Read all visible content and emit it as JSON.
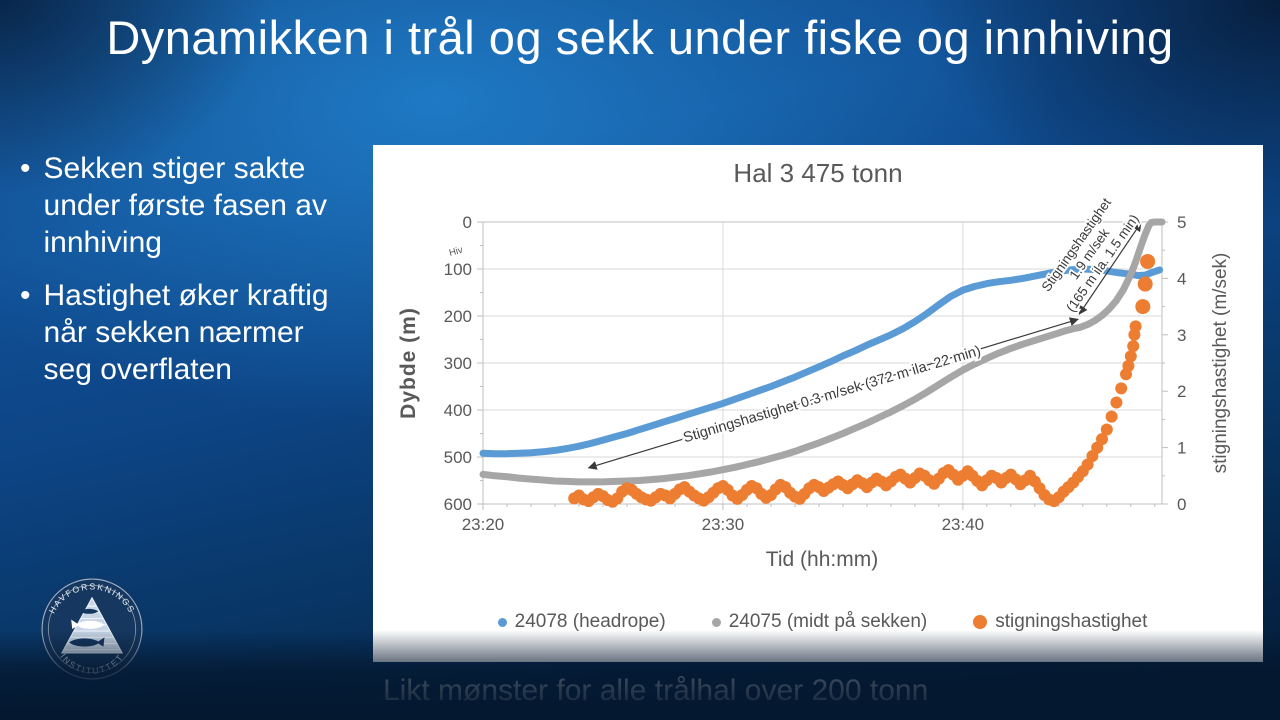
{
  "slide": {
    "title": "Dynamikken i trål og sekk under fiske og innhiving",
    "bullet_char": "•",
    "bullets": [
      "Sekken stiger sakte under første fasen av innhiving",
      "Hastighet øker kraftig når sekken nærmer seg overflaten"
    ],
    "caption": "Likt mønster for alle trålhal over 200 tonn",
    "logo": {
      "top_text": "HAVFORSKNINGS",
      "bottom_text": "INSTITUTTET"
    }
  },
  "colors": {
    "series_blue": "#5B9BD5",
    "series_gray": "#A6A6A6",
    "series_orange": "#ED7D31",
    "chart_text": "#595959",
    "grid": "#D9D9D9",
    "axis": "#BFBFBF",
    "annotation": "#3a3a3a",
    "panel": "#FFFFFF",
    "logo_navy": "#16375f"
  },
  "chart_data": {
    "type": "line",
    "title": "Hal 3 475 tonn",
    "xlabel": "Tid (hh:mm)",
    "ylabel_left": "Dybde (m)",
    "ylabel_right": "stigningshastighet (m/sek)",
    "x_ticks": [
      "23:20",
      "23:30",
      "23:40"
    ],
    "x_tick_minutes": [
      0,
      10,
      20
    ],
    "x_gridline_minutes": [
      10,
      20
    ],
    "x_range_minutes": [
      0,
      28.3
    ],
    "y_left": {
      "min": 0,
      "max": 600,
      "ticks": [
        0,
        100,
        200,
        300,
        400,
        500,
        600
      ],
      "inverted": true
    },
    "y_right": {
      "min": 0,
      "max": 5,
      "ticks": [
        0,
        1,
        2,
        3,
        4,
        5
      ]
    },
    "annotations": {
      "hiv_label": "Hiv",
      "slow_text": "Stigningshastighet 0.3 m/sek (372 m ila. 22 min)",
      "slow_arrow": {
        "t1": 4.4,
        "d1": 523,
        "t2": 24.8,
        "d2": 207
      },
      "fast_text_lines": [
        "Stigningshastighet",
        "1.9 m/sek",
        "(165 m ila. 1.5 min)"
      ],
      "fast_arrow": {
        "t1": 24.85,
        "d1": 196,
        "t2": 27.42,
        "d2": 2
      }
    },
    "series": [
      {
        "name": "24078 (headrope)",
        "axis": "left",
        "color": "#5B9BD5",
        "style": "line",
        "points": [
          [
            0,
            492
          ],
          [
            0.5,
            493
          ],
          [
            1,
            493
          ],
          [
            1.5,
            492
          ],
          [
            2,
            491
          ],
          [
            2.5,
            489
          ],
          [
            3,
            486
          ],
          [
            3.5,
            482
          ],
          [
            4,
            477
          ],
          [
            4.5,
            471
          ],
          [
            5,
            464
          ],
          [
            5.5,
            457
          ],
          [
            6,
            450
          ],
          [
            6.5,
            442
          ],
          [
            7,
            434
          ],
          [
            7.5,
            426
          ],
          [
            8,
            418
          ],
          [
            8.5,
            410
          ],
          [
            9,
            402
          ],
          [
            9.5,
            394
          ],
          [
            10,
            386
          ],
          [
            10.5,
            377
          ],
          [
            11,
            368
          ],
          [
            11.5,
            359
          ],
          [
            12,
            350
          ],
          [
            12.5,
            340
          ],
          [
            13,
            330
          ],
          [
            13.5,
            319
          ],
          [
            14,
            308
          ],
          [
            14.5,
            297
          ],
          [
            15,
            285
          ],
          [
            15.5,
            274
          ],
          [
            16,
            262
          ],
          [
            16.5,
            251
          ],
          [
            17,
            240
          ],
          [
            17.5,
            227
          ],
          [
            18,
            212
          ],
          [
            18.5,
            195
          ],
          [
            19,
            176
          ],
          [
            19.5,
            158
          ],
          [
            20,
            145
          ],
          [
            20.5,
            137
          ],
          [
            21,
            131
          ],
          [
            21.5,
            127
          ],
          [
            22,
            124
          ],
          [
            22.5,
            120
          ],
          [
            23,
            115
          ],
          [
            23.5,
            110
          ],
          [
            24,
            105
          ],
          [
            24.5,
            102
          ],
          [
            25,
            100
          ],
          [
            25.5,
            101
          ],
          [
            26,
            104
          ],
          [
            26.5,
            108
          ],
          [
            27,
            111
          ],
          [
            27.3,
            114
          ],
          [
            27.6,
            113
          ],
          [
            27.9,
            107
          ],
          [
            28.2,
            102
          ]
        ]
      },
      {
        "name": "24075 (midt på sekken)",
        "axis": "left",
        "color": "#A6A6A6",
        "style": "line",
        "points": [
          [
            0,
            537
          ],
          [
            0.5,
            540
          ],
          [
            1,
            542
          ],
          [
            1.5,
            545
          ],
          [
            2,
            547
          ],
          [
            2.5,
            549
          ],
          [
            3,
            551
          ],
          [
            3.5,
            552
          ],
          [
            4,
            553
          ],
          [
            4.5,
            553
          ],
          [
            5,
            553
          ],
          [
            5.5,
            552
          ],
          [
            6,
            551
          ],
          [
            6.5,
            550
          ],
          [
            7,
            548
          ],
          [
            7.5,
            546
          ],
          [
            8,
            543
          ],
          [
            8.5,
            540
          ],
          [
            9,
            536
          ],
          [
            9.5,
            532
          ],
          [
            10,
            527
          ],
          [
            10.5,
            522
          ],
          [
            11,
            516
          ],
          [
            11.5,
            510
          ],
          [
            12,
            503
          ],
          [
            12.5,
            496
          ],
          [
            13,
            488
          ],
          [
            13.5,
            479
          ],
          [
            14,
            470
          ],
          [
            14.5,
            460
          ],
          [
            15,
            450
          ],
          [
            15.5,
            439
          ],
          [
            16,
            428
          ],
          [
            16.5,
            416
          ],
          [
            17,
            404
          ],
          [
            17.5,
            391
          ],
          [
            18,
            377
          ],
          [
            18.5,
            362
          ],
          [
            19,
            346
          ],
          [
            19.5,
            330
          ],
          [
            20,
            315
          ],
          [
            20.5,
            302
          ],
          [
            21,
            290
          ],
          [
            21.5,
            279
          ],
          [
            22,
            269
          ],
          [
            22.5,
            260
          ],
          [
            23,
            252
          ],
          [
            23.5,
            244
          ],
          [
            24,
            236
          ],
          [
            24.3,
            231
          ],
          [
            24.6,
            227
          ],
          [
            24.9,
            224
          ],
          [
            25.2,
            218
          ],
          [
            25.5,
            210
          ],
          [
            25.8,
            199
          ],
          [
            26.1,
            185
          ],
          [
            26.4,
            167
          ],
          [
            26.7,
            143
          ],
          [
            27,
            112
          ],
          [
            27.2,
            85
          ],
          [
            27.4,
            55
          ],
          [
            27.6,
            26
          ],
          [
            27.75,
            8
          ],
          [
            27.85,
            1
          ],
          [
            28,
            0
          ],
          [
            28.3,
            0
          ]
        ]
      },
      {
        "name": "stigningshastighet",
        "axis": "right",
        "color": "#ED7D31",
        "style": "dots",
        "points": [
          [
            3.8,
            0.1
          ],
          [
            4.0,
            0.15
          ],
          [
            4.2,
            0.08
          ],
          [
            4.4,
            0.05
          ],
          [
            4.6,
            0.12
          ],
          [
            4.8,
            0.18
          ],
          [
            5.0,
            0.14
          ],
          [
            5.2,
            0.07
          ],
          [
            5.4,
            0.04
          ],
          [
            5.6,
            0.1
          ],
          [
            5.8,
            0.22
          ],
          [
            6.0,
            0.28
          ],
          [
            6.2,
            0.25
          ],
          [
            6.4,
            0.18
          ],
          [
            6.6,
            0.12
          ],
          [
            6.8,
            0.08
          ],
          [
            7.0,
            0.06
          ],
          [
            7.2,
            0.12
          ],
          [
            7.4,
            0.18
          ],
          [
            7.6,
            0.15
          ],
          [
            7.8,
            0.1
          ],
          [
            8.0,
            0.18
          ],
          [
            8.2,
            0.26
          ],
          [
            8.4,
            0.3
          ],
          [
            8.6,
            0.22
          ],
          [
            8.8,
            0.15
          ],
          [
            9.0,
            0.1
          ],
          [
            9.2,
            0.06
          ],
          [
            9.4,
            0.12
          ],
          [
            9.6,
            0.2
          ],
          [
            9.8,
            0.28
          ],
          [
            10.0,
            0.32
          ],
          [
            10.2,
            0.25
          ],
          [
            10.4,
            0.15
          ],
          [
            10.6,
            0.09
          ],
          [
            10.8,
            0.16
          ],
          [
            11.0,
            0.25
          ],
          [
            11.2,
            0.32
          ],
          [
            11.4,
            0.28
          ],
          [
            11.6,
            0.18
          ],
          [
            11.8,
            0.11
          ],
          [
            12.0,
            0.16
          ],
          [
            12.2,
            0.26
          ],
          [
            12.4,
            0.34
          ],
          [
            12.6,
            0.3
          ],
          [
            12.8,
            0.2
          ],
          [
            13.0,
            0.13
          ],
          [
            13.2,
            0.09
          ],
          [
            13.4,
            0.18
          ],
          [
            13.6,
            0.28
          ],
          [
            13.8,
            0.34
          ],
          [
            14.0,
            0.3
          ],
          [
            14.2,
            0.23
          ],
          [
            14.4,
            0.29
          ],
          [
            14.6,
            0.35
          ],
          [
            14.8,
            0.4
          ],
          [
            15.0,
            0.34
          ],
          [
            15.2,
            0.28
          ],
          [
            15.4,
            0.35
          ],
          [
            15.6,
            0.42
          ],
          [
            15.8,
            0.37
          ],
          [
            16.0,
            0.3
          ],
          [
            16.2,
            0.38
          ],
          [
            16.4,
            0.45
          ],
          [
            16.6,
            0.4
          ],
          [
            16.8,
            0.33
          ],
          [
            17.0,
            0.4
          ],
          [
            17.2,
            0.48
          ],
          [
            17.4,
            0.52
          ],
          [
            17.6,
            0.45
          ],
          [
            17.8,
            0.38
          ],
          [
            18.0,
            0.46
          ],
          [
            18.2,
            0.54
          ],
          [
            18.4,
            0.5
          ],
          [
            18.6,
            0.42
          ],
          [
            18.8,
            0.36
          ],
          [
            19.0,
            0.45
          ],
          [
            19.2,
            0.55
          ],
          [
            19.4,
            0.6
          ],
          [
            19.6,
            0.52
          ],
          [
            19.8,
            0.43
          ],
          [
            20.0,
            0.5
          ],
          [
            20.2,
            0.58
          ],
          [
            20.4,
            0.5
          ],
          [
            20.6,
            0.41
          ],
          [
            20.8,
            0.33
          ],
          [
            21.0,
            0.42
          ],
          [
            21.2,
            0.5
          ],
          [
            21.4,
            0.46
          ],
          [
            21.6,
            0.38
          ],
          [
            21.8,
            0.46
          ],
          [
            22.0,
            0.52
          ],
          [
            22.2,
            0.44
          ],
          [
            22.4,
            0.35
          ],
          [
            22.6,
            0.42
          ],
          [
            22.8,
            0.5
          ],
          [
            23.0,
            0.4
          ],
          [
            23.2,
            0.28
          ],
          [
            23.4,
            0.16
          ],
          [
            23.6,
            0.08
          ],
          [
            23.8,
            0.05
          ],
          [
            24.0,
            0.12
          ],
          [
            24.2,
            0.22
          ],
          [
            24.4,
            0.3
          ],
          [
            24.6,
            0.38
          ],
          [
            24.8,
            0.48
          ],
          [
            25.0,
            0.58
          ],
          [
            25.2,
            0.7
          ],
          [
            25.4,
            0.85
          ],
          [
            25.6,
            1.0
          ],
          [
            25.8,
            1.15
          ],
          [
            26.0,
            1.32
          ],
          [
            26.2,
            1.55
          ],
          [
            26.4,
            1.8
          ],
          [
            26.6,
            2.05
          ],
          [
            26.8,
            2.3
          ],
          [
            26.9,
            2.45
          ],
          [
            27.0,
            2.62
          ],
          [
            27.1,
            2.8
          ],
          [
            27.15,
            3.0
          ],
          [
            27.2,
            3.15
          ],
          [
            27.5,
            3.5
          ],
          [
            27.6,
            3.9
          ],
          [
            27.7,
            4.3
          ]
        ]
      }
    ]
  }
}
